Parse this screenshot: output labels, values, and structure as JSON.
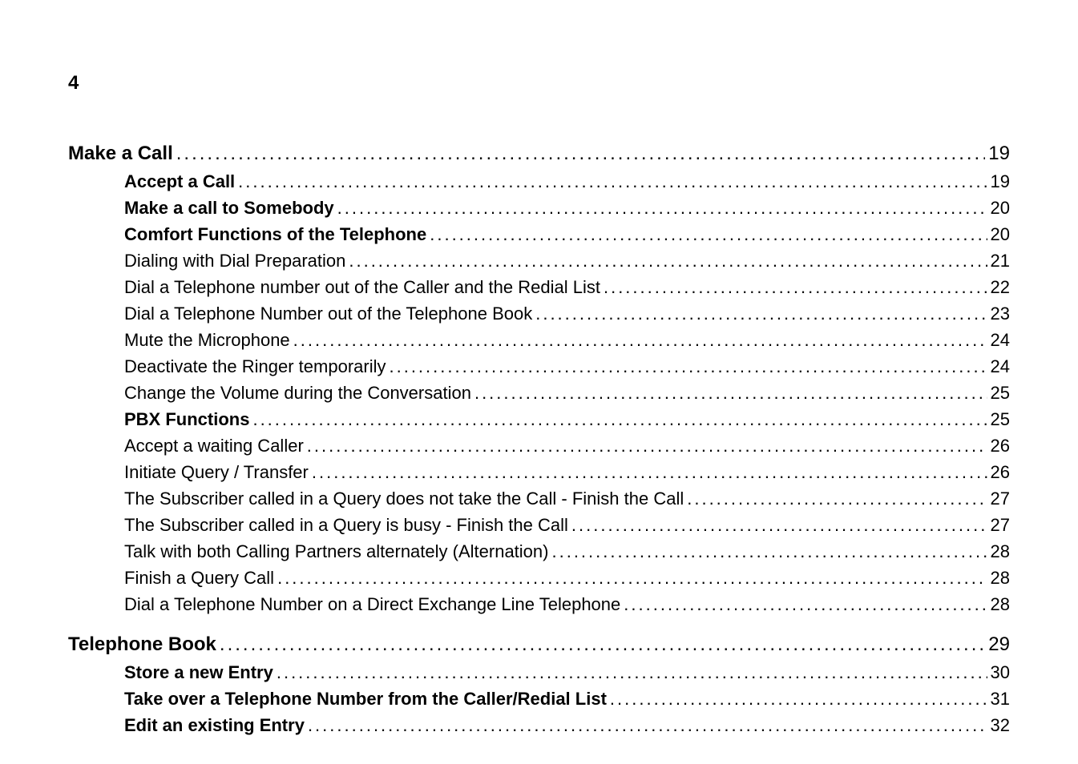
{
  "page_number": "4",
  "toc": [
    {
      "level": 0,
      "title": "Make a Call",
      "page": "19",
      "gap": false
    },
    {
      "level": 1,
      "title": "Accept a Call",
      "page": "19",
      "gap": false
    },
    {
      "level": 1,
      "title": "Make a call to Somebody",
      "page": "20",
      "gap": false
    },
    {
      "level": 1,
      "title": "Comfort Functions of the Telephone",
      "page": "20",
      "gap": false
    },
    {
      "level": 2,
      "title": "Dialing with Dial Preparation",
      "page": "21",
      "gap": false
    },
    {
      "level": 2,
      "title": "Dial a Telephone number out of the Caller and the Redial List",
      "page": "22",
      "gap": false
    },
    {
      "level": 2,
      "title": "Dial a Telephone Number out of the Telephone Book",
      "page": "23",
      "gap": false
    },
    {
      "level": 2,
      "title": "Mute the Microphone",
      "page": "24",
      "gap": false
    },
    {
      "level": 2,
      "title": "Deactivate the Ringer temporarily",
      "page": "24",
      "gap": false
    },
    {
      "level": 2,
      "title": "Change the Volume during the Conversation",
      "page": "25",
      "gap": false
    },
    {
      "level": 1,
      "title": "PBX Functions",
      "page": "25",
      "gap": false
    },
    {
      "level": 2,
      "title": "Accept a waiting Caller",
      "page": "26",
      "gap": false
    },
    {
      "level": 2,
      "title": "Initiate Query / Transfer",
      "page": "26",
      "gap": false
    },
    {
      "level": 2,
      "title": "The Subscriber called in a Query does not take the Call - Finish the Call",
      "page": "27",
      "gap": false
    },
    {
      "level": 2,
      "title": "The Subscriber called in a Query is busy - Finish the Call",
      "page": "27",
      "gap": false
    },
    {
      "level": 2,
      "title": "Talk with both Calling Partners alternately (Alternation)",
      "page": "28",
      "gap": false
    },
    {
      "level": 2,
      "title": "Finish a Query Call",
      "page": "28",
      "gap": false
    },
    {
      "level": 2,
      "title": "Dial a Telephone Number on a Direct Exchange Line Telephone",
      "page": "28",
      "gap": false
    },
    {
      "level": 0,
      "title": "Telephone Book",
      "page": "29",
      "gap": true
    },
    {
      "level": 1,
      "title": "Store a new Entry",
      "page": "30",
      "gap": false
    },
    {
      "level": 1,
      "title": "Take over a Telephone Number from the Caller/Redial List",
      "page": "31",
      "gap": false
    },
    {
      "level": 1,
      "title": "Edit an existing Entry",
      "page": "32",
      "gap": false
    }
  ]
}
